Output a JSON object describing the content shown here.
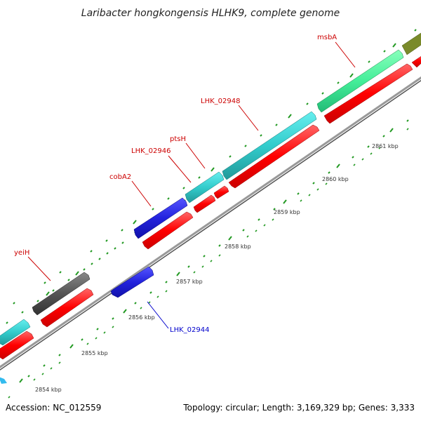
{
  "header": {
    "title": "Laribacter hongkongensis HLHK9, complete genome"
  },
  "footer": {
    "accession": "Accession: NC_012559",
    "summary": "Topology: circular; Length: 3,169,329 bp; Genes: 3,333"
  },
  "colors": {
    "cds_forward": "#ff0000",
    "cds_cyan": "#33cccc",
    "cds_blue": "#2222dd",
    "cds_gray": "#555555",
    "cds_green": "#44ee99",
    "cds_olive": "#7a8a2a",
    "tick": "#229922",
    "backbone": "#888888",
    "label_red": "#cc0000",
    "label_blue": "#0000cc"
  },
  "ruler": {
    "labels": [
      "2854 kbp",
      "2855 kbp",
      "2856 kbp",
      "2857 kbp",
      "2858 kbp",
      "2859 kbp",
      "2860 kbp",
      "2861 kbp"
    ]
  },
  "genes": {
    "yeiH": "yeiH",
    "cobA2": "cobA2",
    "lhk02946": "LHK_02946",
    "ptsH": "ptsH",
    "lhk02948": "LHK_02948",
    "msbA": "msbA",
    "lhk02944": "LHK_02944"
  }
}
